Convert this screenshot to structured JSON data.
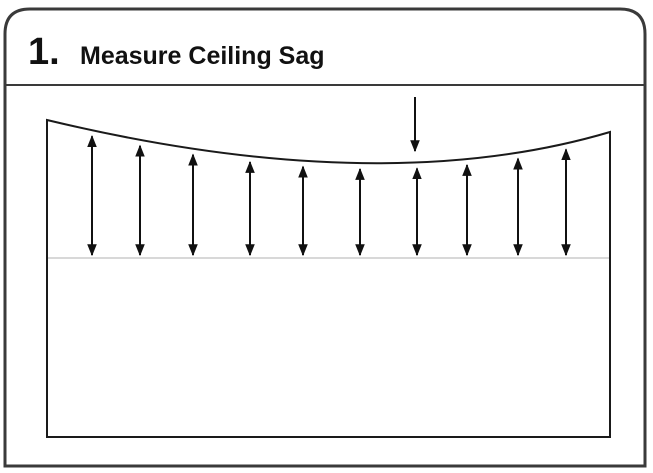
{
  "header": {
    "number": "1.",
    "title": "Measure Ceiling Sag"
  }
}
